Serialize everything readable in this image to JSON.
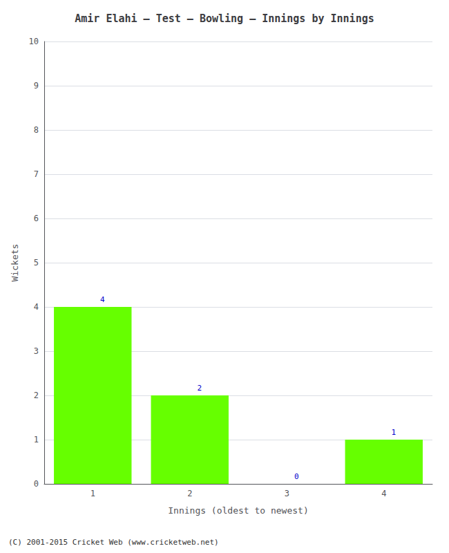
{
  "chart_data": {
    "type": "bar",
    "title": "Amir Elahi – Test – Bowling – Innings by Innings",
    "xlabel": "Innings (oldest to newest)",
    "ylabel": "Wickets",
    "categories": [
      1,
      2,
      3,
      4
    ],
    "values": [
      4,
      2,
      0,
      1
    ],
    "color": "#66ff00",
    "ylim": [
      0,
      10
    ],
    "yticks": [
      0,
      1,
      2,
      3,
      4,
      5,
      6,
      7,
      8,
      9,
      10
    ],
    "grid": true,
    "data_labels": true,
    "footer": "(C) 2001-2015 Cricket Web (www.cricketweb.net)"
  }
}
